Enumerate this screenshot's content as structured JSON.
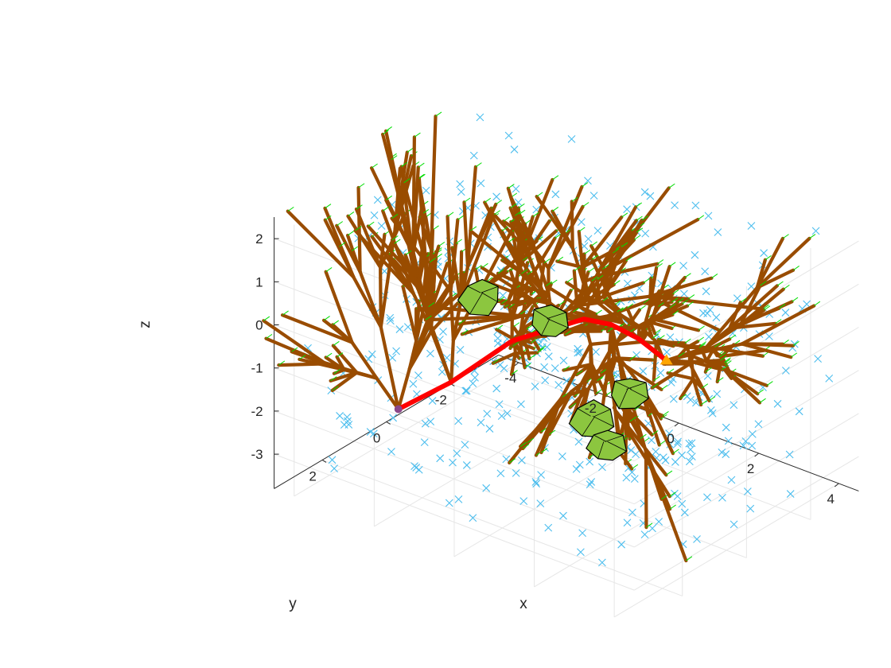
{
  "chart_data": {
    "type": "scatter",
    "projection": "3d",
    "title": "",
    "xlabel": "x",
    "ylabel": "y",
    "zlabel": "z",
    "xlim": [
      -4.5,
      4.5
    ],
    "ylim": [
      -3.5,
      3.5
    ],
    "zlim": [
      -3.8,
      2.5
    ],
    "xticks": [
      -4,
      -2,
      0,
      2,
      4
    ],
    "yticks": [
      -2,
      0,
      2
    ],
    "zticks": [
      -3,
      -2,
      -1,
      0,
      1,
      2
    ],
    "xtick_labels": [
      "-4",
      "-2",
      "0",
      "2",
      "4"
    ],
    "ytick_labels": [
      "-2",
      "0",
      "2"
    ],
    "ztick_labels": [
      "-3",
      "-2",
      "-1",
      "0",
      "1",
      "2"
    ],
    "grid": true,
    "colors": {
      "scatter_marker": "#4DBEEE",
      "tree_branch": "#994C00",
      "main_path": "#FF0000",
      "hull_fill": "#8CC63F",
      "hull_edge": "#000000",
      "leaf_outline": "#00DD00",
      "goal_marker": "#FFA500"
    },
    "series": [
      {
        "name": "",
        "kind": "scatter",
        "marker": "x",
        "count": 420
      },
      {
        "name": "",
        "kind": "tree",
        "description_source": "branches"
      },
      {
        "name": "",
        "kind": "path"
      },
      {
        "name": "",
        "kind": "obstacles"
      }
    ],
    "path": [
      [
        -4.2,
        0.0,
        -3.4
      ],
      [
        -3.2,
        -0.4,
        -2.6
      ],
      [
        -2.0,
        -0.8,
        -1.4
      ],
      [
        -0.8,
        -0.6,
        -0.6
      ],
      [
        0.2,
        -0.3,
        0.1
      ],
      [
        1.2,
        0.1,
        0.5
      ],
      [
        2.2,
        0.5,
        0.7
      ],
      [
        3.3,
        1.0,
        0.8
      ]
    ],
    "obstacles": [
      {
        "center": [
          -1.5,
          0.8,
          0.5
        ],
        "radius": 0.55
      },
      {
        "center": [
          -0.9,
          -0.6,
          -0.5
        ],
        "radius": 0.5
      },
      {
        "center": [
          1.6,
          1.2,
          -1.1
        ],
        "radius": 0.55
      },
      {
        "center": [
          1.8,
          1.0,
          -1.7
        ],
        "radius": 0.5
      },
      {
        "center": [
          -0.2,
          -2.2,
          -2.6
        ],
        "radius": 0.5
      }
    ]
  }
}
